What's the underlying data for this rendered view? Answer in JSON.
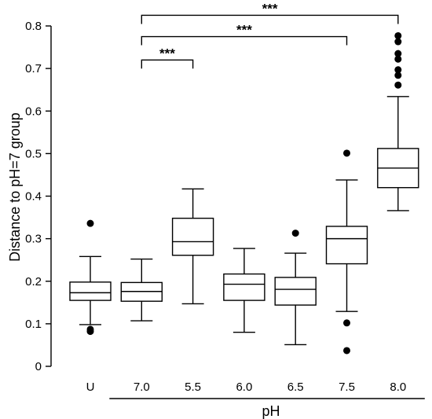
{
  "chart_data": {
    "type": "boxplot",
    "ylabel": "Distance to pH=7 group",
    "xlabel": "pH",
    "ylim": [
      0,
      0.8
    ],
    "yticks": [
      {
        "value": 0,
        "label": "0"
      },
      {
        "value": 0.1,
        "label": "0.1"
      },
      {
        "value": 0.2,
        "label": "0.2"
      },
      {
        "value": 0.3,
        "label": "0.3"
      },
      {
        "value": 0.4,
        "label": "0.4"
      },
      {
        "value": 0.5,
        "label": "0.5"
      },
      {
        "value": 0.6,
        "label": "0.6"
      },
      {
        "value": 0.7,
        "label": "0.7"
      },
      {
        "value": 0.8,
        "label": "0.8"
      }
    ],
    "grid": false,
    "categories": [
      "U",
      "7.0",
      "5.5",
      "6.0",
      "6.5",
      "7.5",
      "8.0"
    ],
    "ph_group": [
      "7.0",
      "5.5",
      "6.0",
      "6.5",
      "7.5",
      "8.0"
    ],
    "boxes": [
      {
        "category": "U",
        "whisker_low": 0.098,
        "q1": 0.155,
        "median": 0.173,
        "q3": 0.198,
        "whisker_high": 0.258,
        "outliers": [
          0.336,
          0.087,
          0.082
        ]
      },
      {
        "category": "7.0",
        "whisker_low": 0.107,
        "q1": 0.153,
        "median": 0.176,
        "q3": 0.197,
        "whisker_high": 0.252,
        "outliers": []
      },
      {
        "category": "5.5",
        "whisker_low": 0.147,
        "q1": 0.261,
        "median": 0.293,
        "q3": 0.348,
        "whisker_high": 0.417,
        "outliers": []
      },
      {
        "category": "6.0",
        "whisker_low": 0.08,
        "q1": 0.155,
        "median": 0.193,
        "q3": 0.217,
        "whisker_high": 0.277,
        "outliers": []
      },
      {
        "category": "6.5",
        "whisker_low": 0.051,
        "q1": 0.144,
        "median": 0.181,
        "q3": 0.209,
        "whisker_high": 0.266,
        "outliers": [
          0.313
        ]
      },
      {
        "category": "7.5",
        "whisker_low": 0.129,
        "q1": 0.241,
        "median": 0.3,
        "q3": 0.329,
        "whisker_high": 0.438,
        "outliers": [
          0.501,
          0.102,
          0.037
        ]
      },
      {
        "category": "8.0",
        "whisker_low": 0.366,
        "q1": 0.42,
        "median": 0.466,
        "q3": 0.512,
        "whisker_high": 0.634,
        "outliers": [
          0.777,
          0.763,
          0.735,
          0.722,
          0.697,
          0.684,
          0.661
        ]
      }
    ],
    "significance": [
      {
        "from": "7.0",
        "to": "5.5",
        "label": "***",
        "y": 0.72
      },
      {
        "from": "7.0",
        "to": "7.5",
        "label": "***",
        "y": 0.775
      },
      {
        "from": "7.0",
        "to": "8.0",
        "label": "***",
        "y": 0.825
      }
    ]
  }
}
